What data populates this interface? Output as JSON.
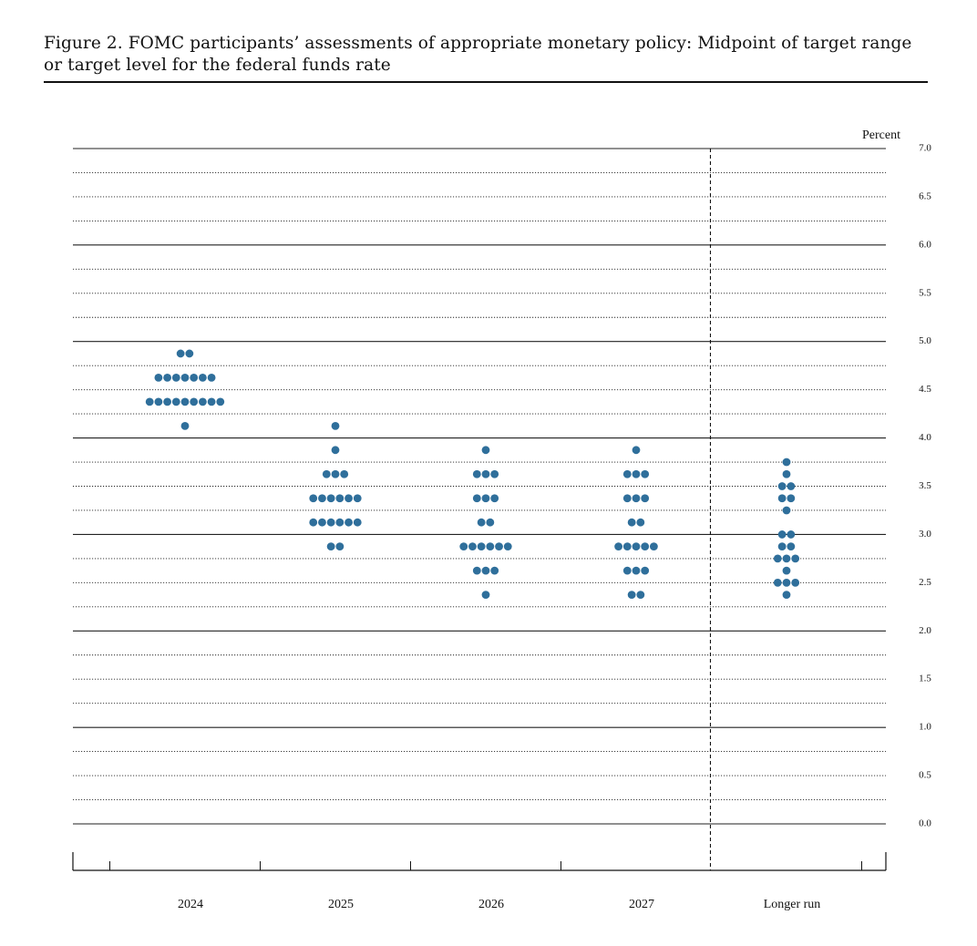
{
  "chart_data": {
    "type": "dot",
    "title": "Figure 2.  FOMC participants’ assessments of appropriate monetary policy: Midpoint of target range or target level for the federal funds rate",
    "y_label": "Percent",
    "color": "#2f6f9b",
    "categories": [
      "2024",
      "2025",
      "2026",
      "2027",
      "Longer run"
    ],
    "values": [
      [
        4.875,
        4.875,
        4.625,
        4.625,
        4.625,
        4.625,
        4.625,
        4.625,
        4.625,
        4.375,
        4.375,
        4.375,
        4.375,
        4.375,
        4.375,
        4.375,
        4.375,
        4.375,
        4.125
      ],
      [
        4.125,
        3.875,
        3.625,
        3.625,
        3.625,
        3.375,
        3.375,
        3.375,
        3.375,
        3.375,
        3.375,
        3.125,
        3.125,
        3.125,
        3.125,
        3.125,
        3.125,
        2.875,
        2.875
      ],
      [
        3.875,
        3.625,
        3.625,
        3.625,
        3.375,
        3.375,
        3.375,
        3.125,
        3.125,
        2.875,
        2.875,
        2.875,
        2.875,
        2.875,
        2.875,
        2.625,
        2.625,
        2.625,
        2.375
      ],
      [
        3.875,
        3.625,
        3.625,
        3.625,
        3.375,
        3.375,
        3.375,
        3.125,
        3.125,
        2.875,
        2.875,
        2.875,
        2.875,
        2.875,
        2.625,
        2.625,
        2.625,
        2.375,
        2.375
      ],
      [
        3.75,
        3.625,
        3.5,
        3.5,
        3.375,
        3.375,
        3.25,
        3.0,
        3.0,
        2.875,
        2.875,
        2.75,
        2.75,
        2.75,
        2.625,
        2.5,
        2.5,
        2.5,
        2.375
      ]
    ],
    "ylim": [
      0,
      7
    ],
    "yticks": [
      {
        "value": 0,
        "label": "0.0"
      },
      0.5,
      {
        "value": 1,
        "label": "1.0"
      },
      1.5,
      {
        "value": 2,
        "label": "2.0"
      },
      2.5,
      {
        "value": 3,
        "label": "3.0"
      },
      3.5,
      {
        "value": 4,
        "label": "4.0"
      },
      4.5,
      {
        "value": 5,
        "label": "5.0"
      },
      5.5,
      {
        "value": 6,
        "label": "6.0"
      },
      6.5,
      {
        "value": 7,
        "label": "7.0"
      }
    ],
    "grid": true
  }
}
